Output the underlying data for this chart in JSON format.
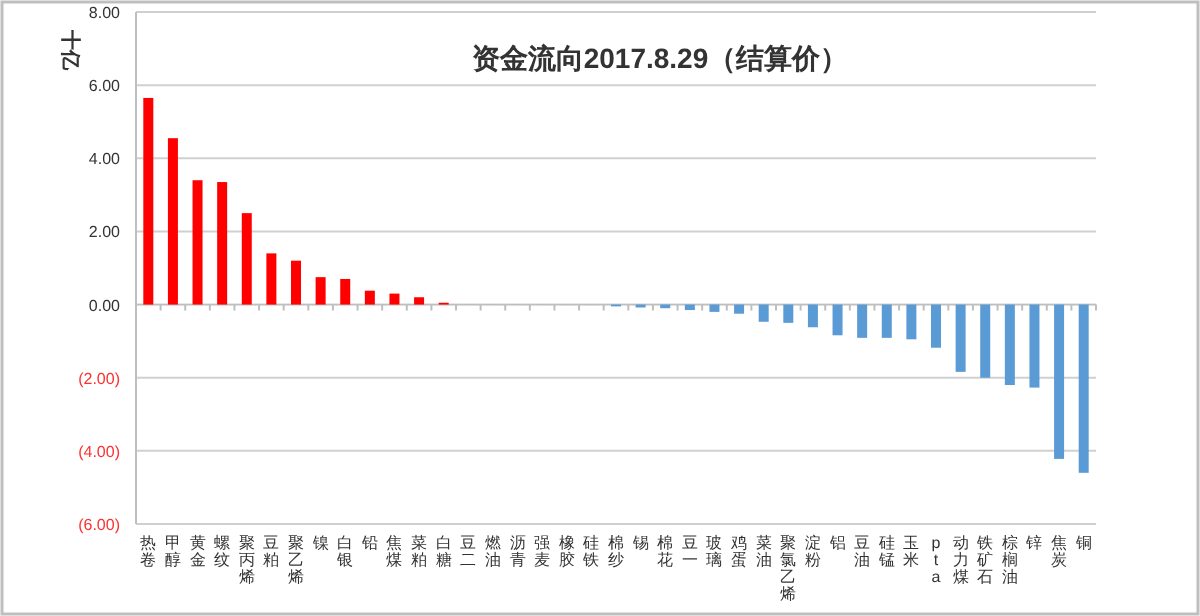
{
  "chart_data": {
    "type": "bar",
    "title": "资金流向2017.8.29（结算价）",
    "ylabel": "十亿",
    "categories": [
      "热卷",
      "甲醇",
      "黄金",
      "螺纹",
      "聚丙烯",
      "豆粕",
      "聚乙烯",
      "镍",
      "白银",
      "铅",
      "焦煤",
      "菜粕",
      "白糖",
      "豆二",
      "燃油",
      "沥青",
      "强麦",
      "橡胶",
      "硅铁",
      "棉纱",
      "锡",
      "棉花",
      "豆一",
      "玻璃",
      "鸡蛋",
      "菜油",
      "聚氯乙烯",
      "淀粉",
      "铝",
      "豆油",
      "硅锰",
      "玉米",
      "pta",
      "动力煤",
      "铁矿石",
      "棕榈油",
      "锌",
      "焦炭",
      "铜"
    ],
    "values": [
      5.65,
      4.55,
      3.4,
      3.35,
      2.5,
      1.4,
      1.2,
      0.75,
      0.7,
      0.38,
      0.3,
      0.2,
      0.05,
      0,
      0,
      0,
      0,
      0,
      0,
      -0.05,
      -0.08,
      -0.1,
      -0.15,
      -0.2,
      -0.25,
      -0.47,
      -0.5,
      -0.62,
      -0.84,
      -0.91,
      -0.91,
      -0.95,
      -1.18,
      -1.84,
      -2.0,
      -2.2,
      -2.27,
      -4.22,
      -4.6
    ],
    "colors": [
      "#ff0000",
      "#ff0000",
      "#ff0000",
      "#ff0000",
      "#ff0000",
      "#ff0000",
      "#ff0000",
      "#ff0000",
      "#ff0000",
      "#ff0000",
      "#ff0000",
      "#ff0000",
      "#ff0000",
      "#ff0000",
      "#ff0000",
      "#ff0000",
      "#ff0000",
      "#ff0000",
      "#ff0000",
      "#5b9bd5",
      "#5b9bd5",
      "#5b9bd5",
      "#5b9bd5",
      "#5b9bd5",
      "#5b9bd5",
      "#5b9bd5",
      "#5b9bd5",
      "#5b9bd5",
      "#5b9bd5",
      "#5b9bd5",
      "#5b9bd5",
      "#5b9bd5",
      "#5b9bd5",
      "#5b9bd5",
      "#5b9bd5",
      "#5b9bd5",
      "#5b9bd5",
      "#5b9bd5",
      "#5b9bd5"
    ],
    "ylim": [
      -6,
      8
    ],
    "yticks": [
      {
        "value": -6,
        "label": "(6.00)"
      },
      {
        "value": -4,
        "label": "(4.00)"
      },
      {
        "value": -2,
        "label": "(2.00)"
      },
      {
        "value": 0,
        "label": "0.00"
      },
      {
        "value": 2,
        "label": "2.00"
      },
      {
        "value": 4,
        "label": "4.00"
      },
      {
        "value": 6,
        "label": "6.00"
      },
      {
        "value": 8,
        "label": "8.00"
      }
    ],
    "grid": "y"
  }
}
